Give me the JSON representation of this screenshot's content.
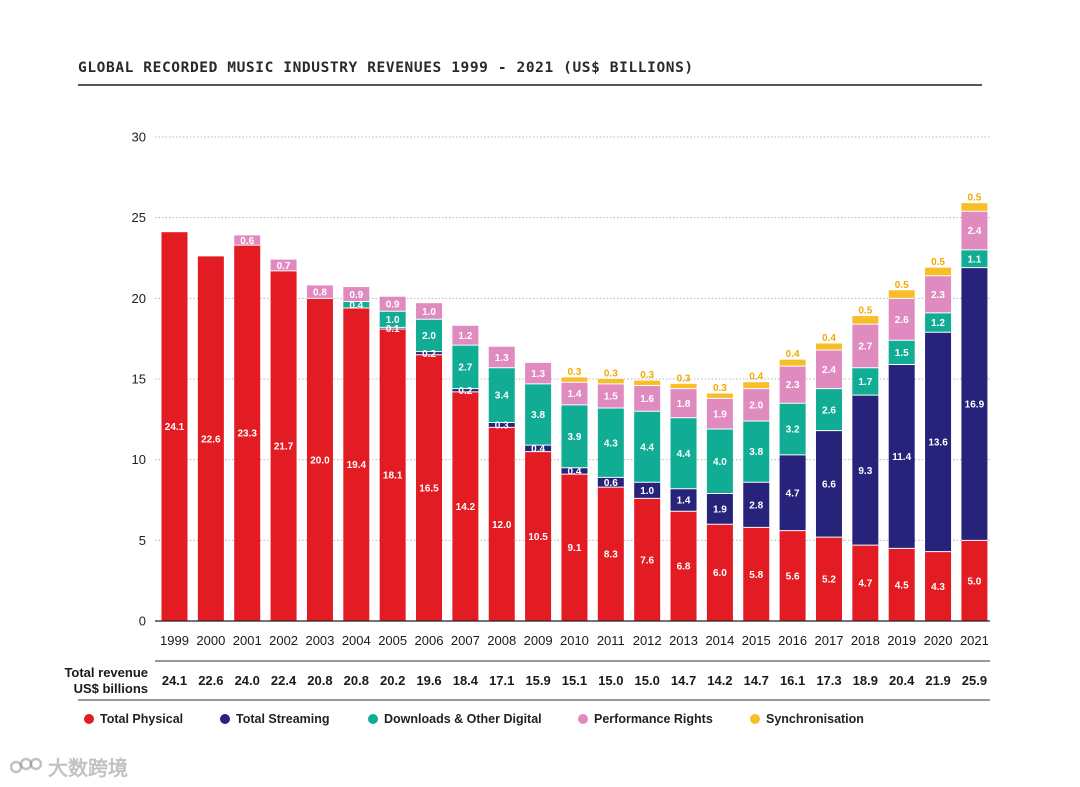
{
  "chart_data": {
    "type": "bar",
    "stacked": true,
    "title": "GLOBAL RECORDED MUSIC INDUSTRY REVENUES 1999 - 2021 (US$ BILLIONS)",
    "categories": [
      "1999",
      "2000",
      "2001",
      "2002",
      "2003",
      "2004",
      "2005",
      "2006",
      "2007",
      "2008",
      "2009",
      "2010",
      "2011",
      "2012",
      "2013",
      "2014",
      "2015",
      "2016",
      "2017",
      "2018",
      "2019",
      "2020",
      "2021"
    ],
    "ylim": [
      0,
      30
    ],
    "yticks": [
      0,
      5,
      10,
      15,
      20,
      25,
      30
    ],
    "grid": true,
    "series": [
      {
        "name": "Total Physical",
        "color": "#e31b23",
        "label_color": "#ffffff",
        "values": [
          24.1,
          22.6,
          23.3,
          21.7,
          20.0,
          19.4,
          18.1,
          16.5,
          14.2,
          12.0,
          10.5,
          9.1,
          8.3,
          7.6,
          6.8,
          6.0,
          5.8,
          5.6,
          5.2,
          4.7,
          4.5,
          4.3,
          5.0
        ],
        "labels": [
          "24.1",
          "22.6",
          "23.3",
          "21.7",
          "20.0",
          "19.4",
          "18.1",
          "16.5",
          "14.2",
          "12.0",
          "10.5",
          "9.1",
          "8.3",
          "7.6",
          "6.8",
          "6.0",
          "5.8",
          "5.6",
          "5.2",
          "4.7",
          "4.5",
          "4.3",
          "5.0"
        ]
      },
      {
        "name": "Total Streaming",
        "color": "#27237a",
        "label_color": "#ffffff",
        "values": [
          0,
          0,
          0,
          0,
          0,
          0,
          0.1,
          0.2,
          0.2,
          0.3,
          0.4,
          0.4,
          0.6,
          1.0,
          1.4,
          1.9,
          2.8,
          4.7,
          6.6,
          9.3,
          11.4,
          13.6,
          16.9
        ],
        "labels": [
          "",
          "",
          "",
          "",
          "",
          "",
          "0.1",
          "0.2",
          "0.2",
          "0.3",
          "0.4",
          "0.4",
          "0.6",
          "1.0",
          "1.4",
          "1.9",
          "2.8",
          "4.7",
          "6.6",
          "9.3",
          "11.4",
          "13.6",
          "16.9"
        ]
      },
      {
        "name": "Downloads & Other Digital",
        "color": "#11ac94",
        "label_color": "#ffffff",
        "values": [
          0,
          0,
          0,
          0,
          0,
          0.4,
          1.0,
          2.0,
          2.7,
          3.4,
          3.8,
          3.9,
          4.3,
          4.4,
          4.4,
          4.0,
          3.8,
          3.2,
          2.6,
          1.7,
          1.5,
          1.2,
          1.1
        ],
        "labels": [
          "",
          "",
          "",
          "",
          "",
          "0.4",
          "1.0",
          "2.0",
          "2.7",
          "3.4",
          "3.8",
          "3.9",
          "4.3",
          "4.4",
          "4.4",
          "4.0",
          "3.8",
          "3.2",
          "2.6",
          "1.7",
          "1.5",
          "1.2",
          "1.1"
        ]
      },
      {
        "name": "Performance Rights",
        "color": "#e08bbf",
        "label_color": "#ffffff",
        "values": [
          0,
          0,
          0.6,
          0.7,
          0.8,
          0.9,
          0.9,
          1.0,
          1.2,
          1.3,
          1.3,
          1.4,
          1.5,
          1.6,
          1.8,
          1.9,
          2.0,
          2.3,
          2.4,
          2.7,
          2.6,
          2.3,
          2.4
        ],
        "labels": [
          "",
          "",
          "0.6",
          "0.7",
          "0.8",
          "0.9",
          "0.9",
          "1.0",
          "1.2",
          "1.3",
          "1.3",
          "1.4",
          "1.5",
          "1.6",
          "1.8",
          "1.9",
          "2.0",
          "2.3",
          "2.4",
          "2.7",
          "2.6",
          "2.3",
          "2.4"
        ]
      },
      {
        "name": "Synchronisation",
        "color": "#f8be27",
        "label_color": "#f5a800",
        "values": [
          0,
          0,
          0,
          0,
          0,
          0,
          0,
          0,
          0,
          0,
          0,
          0.3,
          0.3,
          0.3,
          0.3,
          0.3,
          0.4,
          0.4,
          0.4,
          0.5,
          0.5,
          0.5,
          0.5
        ],
        "labels": [
          "",
          "",
          "",
          "",
          "",
          "",
          "",
          "",
          "",
          "",
          "",
          "0.3",
          "0.3",
          "0.3",
          "0.3",
          "0.3",
          "0.4",
          "0.4",
          "0.4",
          "0.5",
          "0.5",
          "0.5",
          "0.5"
        ]
      }
    ],
    "totals": {
      "label_line1": "Total revenue",
      "label_line2": "US$ billions",
      "values": [
        "24.1",
        "22.6",
        "24.0",
        "22.4",
        "20.8",
        "20.8",
        "20.2",
        "19.6",
        "18.4",
        "17.1",
        "15.9",
        "15.1",
        "15.0",
        "15.0",
        "14.7",
        "14.2",
        "14.7",
        "16.1",
        "17.3",
        "18.9",
        "20.4",
        "21.9",
        "25.9"
      ]
    },
    "legend_position": "bottom"
  },
  "watermark": {
    "text": "大数跨境",
    "color": "#9a9a9a"
  }
}
